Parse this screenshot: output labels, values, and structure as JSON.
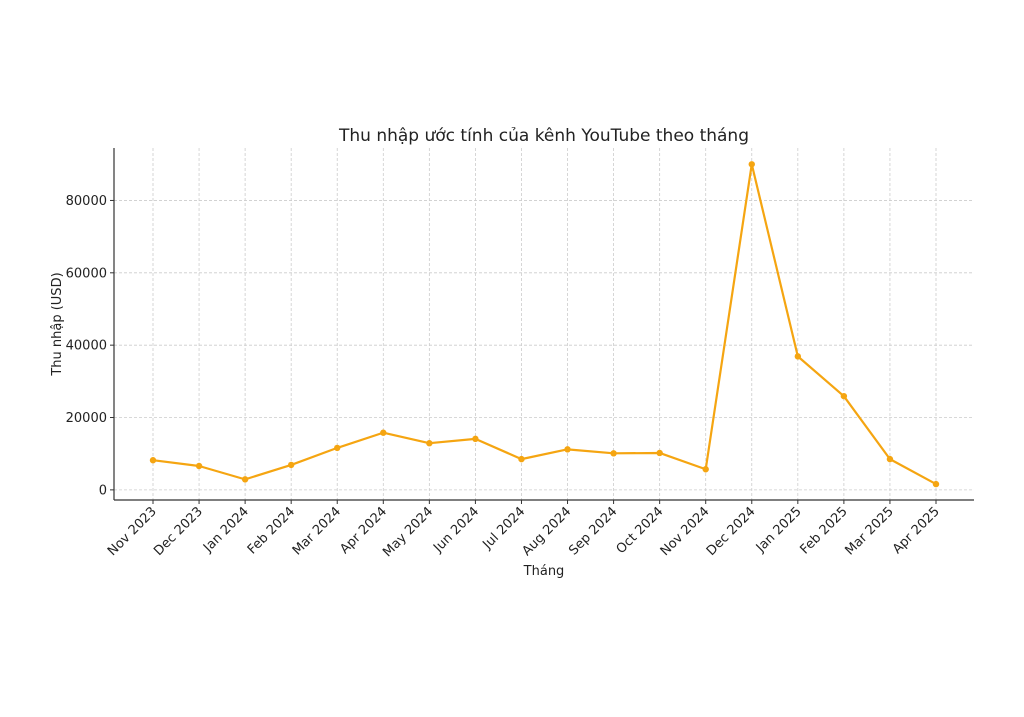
{
  "chart_data": {
    "type": "line",
    "title": "Thu nhập ước tính của kênh YouTube theo tháng",
    "xlabel": "Tháng",
    "ylabel": "Thu nhập (USD)",
    "categories": [
      "Nov 2023",
      "Dec 2023",
      "Jan 2024",
      "Feb 2024",
      "Mar 2024",
      "Apr 2024",
      "May 2024",
      "Jun 2024",
      "Jul 2024",
      "Aug 2024",
      "Sep 2024",
      "Oct 2024",
      "Nov 2024",
      "Dec 2024",
      "Jan 2025",
      "Feb 2025",
      "Mar 2025",
      "Apr 2025"
    ],
    "series": [
      {
        "values": [
          8200,
          6600,
          2900,
          6900,
          11600,
          15800,
          12900,
          14100,
          8500,
          11200,
          10100,
          10200,
          5700,
          90000,
          36900,
          25900,
          8500,
          1600
        ],
        "color": "#f5a511"
      }
    ],
    "yticks": [
      0,
      20000,
      40000,
      60000,
      80000
    ],
    "ylim": [
      -2800,
      94500
    ],
    "grid": true
  }
}
